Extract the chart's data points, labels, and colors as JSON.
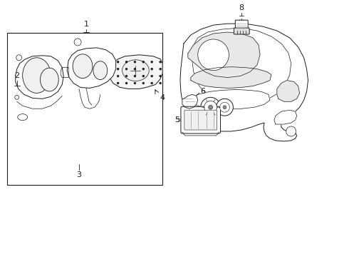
{
  "background_color": "#ffffff",
  "line_color": "#1a1a1a",
  "lw": 0.7,
  "label_fontsize": 8,
  "fig_width": 4.9,
  "fig_height": 3.6,
  "dpi": 100
}
